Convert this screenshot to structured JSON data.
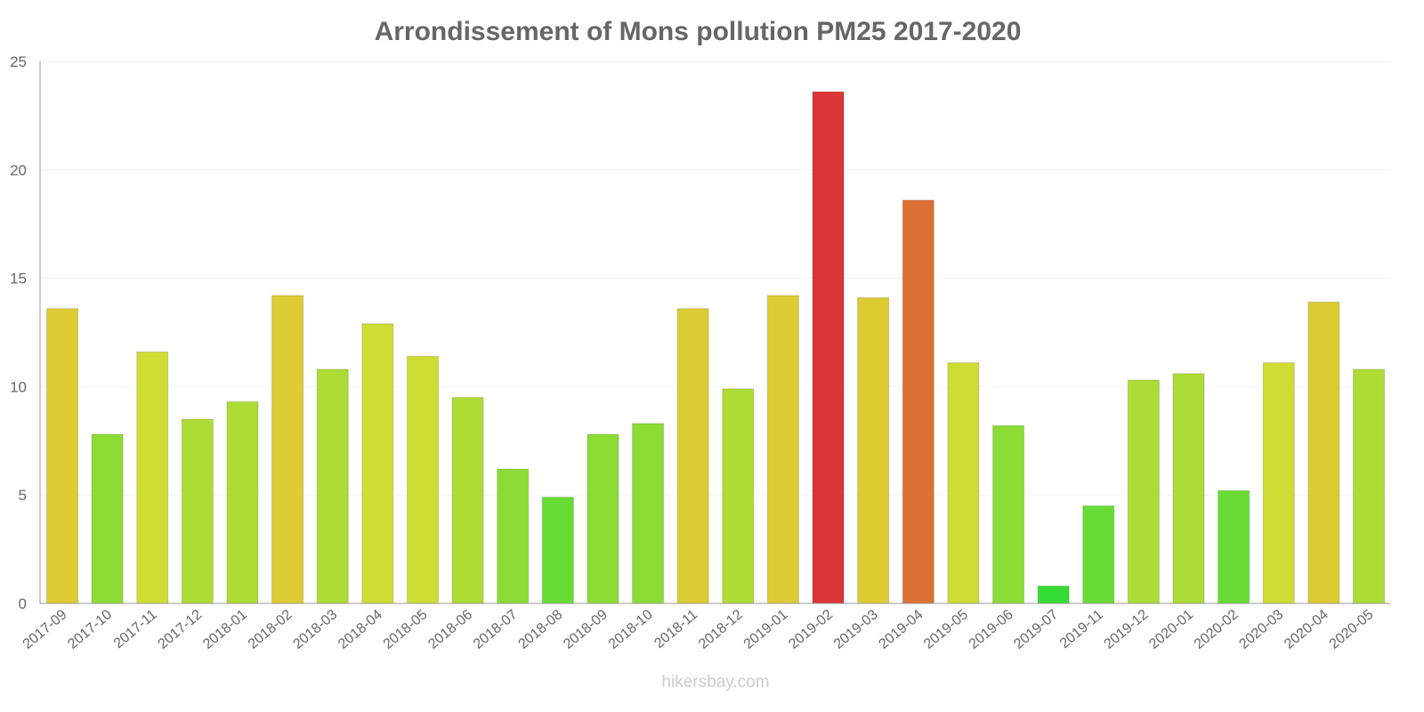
{
  "chart_data": {
    "type": "bar",
    "title": "Arrondissement of Mons pollution PM25 2017-2020",
    "xlabel": "",
    "ylabel": "",
    "ylim": [
      0,
      25
    ],
    "yticks": [
      0,
      5,
      10,
      15,
      20,
      25
    ],
    "grid": true,
    "categories": [
      "2017-09",
      "2017-10",
      "2017-11",
      "2017-12",
      "2018-01",
      "2018-02",
      "2018-03",
      "2018-04",
      "2018-05",
      "2018-06",
      "2018-07",
      "2018-08",
      "2018-09",
      "2018-10",
      "2018-11",
      "2018-12",
      "2019-01",
      "2019-02",
      "2019-03",
      "2019-04",
      "2019-05",
      "2019-06",
      "2019-07",
      "2019-11",
      "2019-12",
      "2020-01",
      "2020-02",
      "2020-03",
      "2020-04",
      "2020-05"
    ],
    "values": [
      13.6,
      7.8,
      11.6,
      8.5,
      9.3,
      14.2,
      10.8,
      12.9,
      11.4,
      9.5,
      6.2,
      4.9,
      7.8,
      8.3,
      13.6,
      9.9,
      14.2,
      23.6,
      14.1,
      18.6,
      11.1,
      8.2,
      0.8,
      4.5,
      10.3,
      10.6,
      5.2,
      11.1,
      13.9,
      10.8
    ],
    "colors": [
      "#dccb33",
      "#8bdc35",
      "#cfdc33",
      "#acdc35",
      "#acdc35",
      "#dccb33",
      "#acdc35",
      "#cfdc33",
      "#cfdc33",
      "#acdc35",
      "#8bdc35",
      "#68dc35",
      "#8bdc35",
      "#8bdc35",
      "#dccb33",
      "#acdc35",
      "#dccb33",
      "#dc3535",
      "#dccb33",
      "#dc7035",
      "#cfdc33",
      "#8bdc35",
      "#35dc35",
      "#68dc35",
      "#acdc35",
      "#acdc35",
      "#68dc35",
      "#cfdc33",
      "#dccb33",
      "#acdc35"
    ]
  },
  "watermark": "hikersbay.com"
}
